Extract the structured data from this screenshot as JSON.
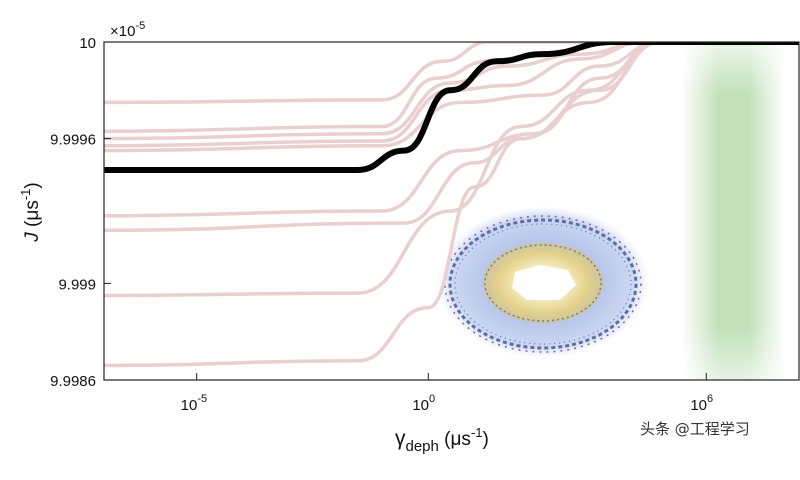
{
  "chart_data": {
    "type": "line",
    "title": "",
    "xlabel": "γ_deph (μs^-1)",
    "ylabel": "J (μs^-1)",
    "x_scale": "log",
    "xlim": [
      1e-07,
      100000000.0
    ],
    "ylim": [
      9.9986e-05,
      0.0001
    ],
    "y_multiplier": "×10^-5",
    "x_ticks": [
      {
        "value": 1e-05,
        "label": "10^-5"
      },
      {
        "value": 1,
        "label": "10^0"
      },
      {
        "value": 1000000.0,
        "label": "10^6"
      }
    ],
    "y_ticks": [
      {
        "value": 9.9986,
        "label": "9.9986"
      },
      {
        "value": 9.999,
        "label": "9.999"
      },
      {
        "value": 9.9996,
        "label": "9.9996"
      },
      {
        "value": 10,
        "label": "10"
      }
    ],
    "grid": false,
    "highlight_region": {
      "x_range": [
        300000.0,
        50000000.0
      ],
      "color": "#b8ddb0"
    },
    "series": [
      {
        "role": "highlighted",
        "color": "#000000",
        "points": [
          [
            1e-07,
            9.99947
          ],
          [
            0.03,
            9.99947
          ],
          [
            0.3,
            9.99955
          ],
          [
            3,
            9.9998
          ],
          [
            30,
            9.99992
          ],
          [
            300,
            9.99995
          ],
          [
            10000.0,
            10.0
          ],
          [
            100000000.0,
            10.0
          ]
        ]
      },
      {
        "role": "background",
        "color": "#e9cfcf",
        "points": [
          [
            1e-07,
            9.99975
          ],
          [
            0.1,
            9.99976
          ],
          [
            2,
            9.99992
          ],
          [
            20,
            10.0
          ],
          [
            100000000.0,
            10.0
          ]
        ]
      },
      {
        "role": "background",
        "color": "#e9cfcf",
        "points": [
          [
            1e-07,
            9.99963
          ],
          [
            0.1,
            9.99965
          ],
          [
            1.5,
            9.99985
          ],
          [
            20,
            9.99992
          ],
          [
            300,
            9.99995
          ],
          [
            10000.0,
            10.0
          ],
          [
            100000000.0,
            10.0
          ]
        ]
      },
      {
        "role": "background",
        "color": "#e9cfcf",
        "points": [
          [
            1e-07,
            9.9996
          ],
          [
            0.1,
            9.99962
          ],
          [
            3,
            9.99983
          ],
          [
            50,
            9.9999
          ],
          [
            2000,
            9.99995
          ],
          [
            50000.0,
            10.0
          ],
          [
            100000000.0,
            10.0
          ]
        ]
      },
      {
        "role": "background",
        "color": "#e9cfcf",
        "points": [
          [
            1e-07,
            9.99957
          ],
          [
            0.1,
            9.99959
          ],
          [
            3,
            9.9998
          ],
          [
            50,
            9.99982
          ],
          [
            2000,
            9.99993
          ],
          [
            50000.0,
            10.0
          ],
          [
            100000000.0,
            10.0
          ]
        ]
      },
      {
        "role": "background",
        "color": "#e9cfcf",
        "points": [
          [
            1e-07,
            9.99955
          ],
          [
            0.1,
            9.99957
          ],
          [
            5,
            9.99975
          ],
          [
            300,
            9.99978
          ],
          [
            5000,
            9.9999
          ],
          [
            100000.0,
            10.0
          ],
          [
            100000000.0,
            10.0
          ]
        ]
      },
      {
        "role": "background",
        "color": "#e9cfcf",
        "points": [
          [
            1e-07,
            9.99928
          ],
          [
            0.1,
            9.9993
          ],
          [
            5,
            9.99955
          ],
          [
            200,
            9.99962
          ],
          [
            5000,
            9.99985
          ],
          [
            100000.0,
            10.0
          ],
          [
            100000000.0,
            10.0
          ]
        ]
      },
      {
        "role": "background",
        "color": "#e9cfcf",
        "points": [
          [
            1e-07,
            9.99922
          ],
          [
            0.3,
            9.99925
          ],
          [
            10,
            9.9995
          ],
          [
            100,
            9.9996
          ],
          [
            5000,
            9.9998
          ],
          [
            100000.0,
            10.0
          ],
          [
            100000000.0,
            10.0
          ]
        ]
      },
      {
        "role": "background",
        "color": "#e9cfcf",
        "points": [
          [
            1e-07,
            9.99895
          ],
          [
            0.03,
            9.99896
          ],
          [
            3,
            9.9993
          ],
          [
            100,
            9.99965
          ],
          [
            3000,
            9.9998
          ],
          [
            100000.0,
            10.0
          ],
          [
            100000000.0,
            10.0
          ]
        ]
      },
      {
        "role": "background",
        "color": "#e9cfcf",
        "points": [
          [
            1e-07,
            9.99866
          ],
          [
            0.03,
            9.99868
          ],
          [
            1,
            9.9989
          ],
          [
            10,
            9.9994
          ],
          [
            100,
            9.9996
          ],
          [
            3000,
            9.99975
          ],
          [
            100000.0,
            10.0
          ],
          [
            100000000.0,
            10.0
          ]
        ]
      }
    ],
    "inset_image": {
      "description_name": "ring-complex-illustration"
    }
  },
  "watermark": "头条 @工程学习"
}
